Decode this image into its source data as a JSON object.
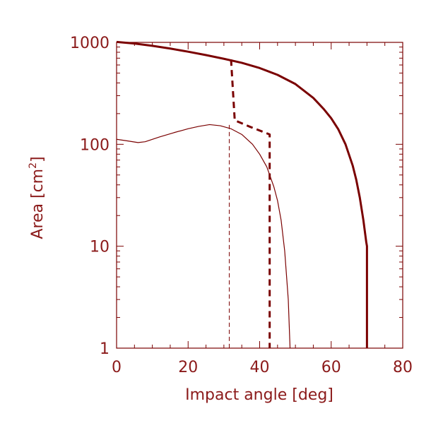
{
  "chart_data": {
    "type": "line",
    "xlabel": "Impact angle [deg]",
    "ylabel_main": "Area [cm",
    "ylabel_sup": "2",
    "ylabel_close": "]",
    "xlim": [
      0,
      80
    ],
    "ylim": [
      1,
      1000
    ],
    "yscale": "log",
    "grid": false,
    "x_ticks": [
      0,
      20,
      40,
      60,
      80
    ],
    "y_ticks": [
      1,
      10,
      100,
      1000
    ],
    "x_tick_labels": [
      "0",
      "20",
      "40",
      "60",
      "80"
    ],
    "y_tick_labels": [
      "1",
      "10",
      "100",
      "1000"
    ],
    "color": "#7a0000",
    "series": [
      {
        "style": "thick-solid",
        "points": [
          [
            0,
            1010
          ],
          [
            5,
            975
          ],
          [
            10,
            925
          ],
          [
            15,
            870
          ],
          [
            20,
            810
          ],
          [
            25,
            750
          ],
          [
            30,
            690
          ],
          [
            35,
            630
          ],
          [
            40,
            560
          ],
          [
            45,
            480
          ],
          [
            50,
            390
          ],
          [
            55,
            285
          ],
          [
            58,
            220
          ],
          [
            60,
            180
          ],
          [
            62,
            140
          ],
          [
            64,
            100
          ],
          [
            66,
            62
          ],
          [
            67,
            45
          ],
          [
            68,
            30
          ],
          [
            69,
            18
          ],
          [
            69.8,
            11
          ],
          [
            70,
            10
          ],
          [
            70,
            1
          ]
        ]
      },
      {
        "style": "thick-dashed",
        "points": [
          [
            32,
            680
          ],
          [
            33,
            180
          ],
          [
            33,
            172
          ],
          [
            37,
            150
          ],
          [
            42.8,
            125
          ],
          [
            42.8,
            1
          ]
        ]
      },
      {
        "style": "thin-solid",
        "points": [
          [
            0,
            112
          ],
          [
            3,
            108
          ],
          [
            6,
            104
          ],
          [
            8,
            106
          ],
          [
            12,
            118
          ],
          [
            16,
            130
          ],
          [
            20,
            142
          ],
          [
            23,
            150
          ],
          [
            26,
            156
          ],
          [
            29,
            152
          ],
          [
            32,
            142
          ],
          [
            35,
            125
          ],
          [
            38,
            100
          ],
          [
            40,
            80
          ],
          [
            42,
            60
          ],
          [
            44,
            38
          ],
          [
            45,
            28
          ],
          [
            46,
            18
          ],
          [
            47,
            9
          ],
          [
            48,
            3
          ],
          [
            48.5,
            1
          ]
        ]
      },
      {
        "style": "thin-dashed",
        "points": [
          [
            31.5,
            155
          ],
          [
            31.5,
            1
          ]
        ]
      }
    ]
  }
}
